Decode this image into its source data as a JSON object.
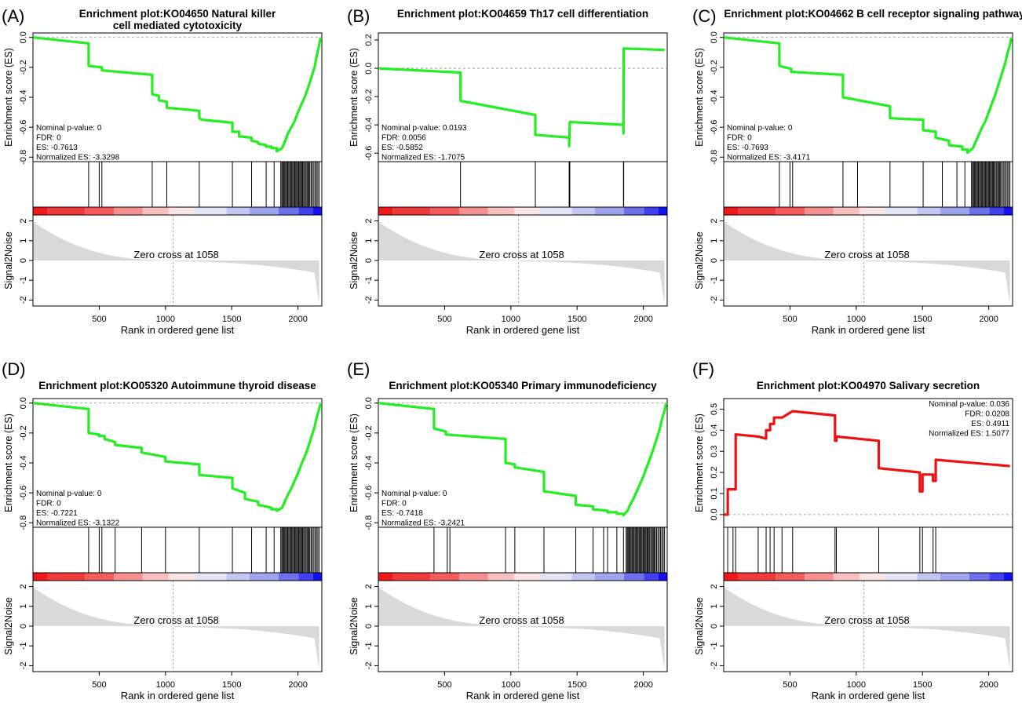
{
  "figure": {
    "shared": {
      "es_ylabel": "Enrichment score (ES)",
      "noise_ylabel": "Signal2Noise",
      "xlabel": "Rank in ordered gene list",
      "zero_cross_text": "Zero cross at 1058",
      "x_ticks": [
        "500",
        "1000",
        "1500",
        "2000"
      ],
      "noise_ticks": [
        "2",
        "1",
        "0",
        "-1",
        "-2"
      ],
      "colors": {
        "negative_curve": "#22ee22",
        "positive_curve": "#ee1111",
        "heatmap_red": "#ff0000",
        "heatmap_blue": "#0000ff",
        "noise_fill": "#d9d9d9"
      }
    }
  },
  "chart_data": [
    {
      "type": "line",
      "panel_label": "(A)",
      "title": "Enrichment plot:KO04650 Natural killer cell mediated cytotoxicity",
      "stats": [
        "Nominal p-value: 0",
        "FDR: 0",
        "ES: -0.7613",
        "Normalized ES: -3.3298"
      ],
      "y_ticks": [
        "0.0",
        "-0.2",
        "-0.4",
        "-0.6",
        "-0.8"
      ],
      "ylim": [
        -0.83,
        0.03
      ],
      "xlim": [
        0,
        2180
      ],
      "zero_cross": 1058,
      "es": {
        "x": [
          1,
          420,
          420,
          520,
          520,
          900,
          900,
          950,
          950,
          1010,
          1010,
          1255,
          1255,
          1275,
          1275,
          1505,
          1505,
          1555,
          1555,
          1650,
          1650,
          1700,
          1700,
          1760,
          1760,
          1800,
          1800,
          1840,
          1840,
          1880,
          1900,
          1925,
          1950,
          1975,
          2000,
          2025,
          2050,
          2075,
          2100,
          2125,
          2140,
          2160,
          2172
        ],
        "y": [
          0.0,
          -0.04,
          -0.19,
          -0.2,
          -0.22,
          -0.25,
          -0.38,
          -0.39,
          -0.42,
          -0.43,
          -0.47,
          -0.49,
          -0.54,
          -0.55,
          -0.55,
          -0.57,
          -0.63,
          -0.63,
          -0.66,
          -0.67,
          -0.69,
          -0.7,
          -0.71,
          -0.72,
          -0.73,
          -0.73,
          -0.74,
          -0.74,
          -0.76,
          -0.74,
          -0.7,
          -0.64,
          -0.6,
          -0.56,
          -0.5,
          -0.45,
          -0.4,
          -0.34,
          -0.27,
          -0.2,
          -0.13,
          -0.05,
          0.0
        ]
      },
      "hits": [
        420,
        500,
        520,
        900,
        1010,
        1255,
        1505,
        1650,
        1760,
        1820,
        1870,
        1878,
        1885,
        1892,
        1900,
        1907,
        1915,
        1922,
        1930,
        1938,
        1945,
        1953,
        1960,
        1968,
        1975,
        1983,
        1990,
        1998,
        2005,
        2013,
        2020,
        2028,
        2035,
        2043,
        2050,
        2060,
        2068,
        2075,
        2083,
        2090,
        2100,
        2110,
        2120,
        2130,
        2140,
        2150,
        2160
      ]
    },
    {
      "type": "line",
      "panel_label": "(B)",
      "title": "Enrichment plot:KO04659 Th17 cell differentiation",
      "stats": [
        "Nominal p-value: 0.0193",
        "FDR: 0.0056",
        "ES: -0.5852",
        "Normalized ES: -1.7075"
      ],
      "y_ticks": [
        "0.2",
        "0.0",
        "-0.2",
        "-0.4",
        "-0.6"
      ],
      "ylim": [
        -0.66,
        0.25
      ],
      "xlim": [
        0,
        2180
      ],
      "zero_cross": 1058,
      "es": {
        "x": [
          1,
          620,
          620,
          1185,
          1185,
          1440,
          1440,
          1445,
          1445,
          1850,
          1850,
          1852,
          1852,
          2160
        ],
        "y": [
          0.0,
          -0.03,
          -0.23,
          -0.33,
          -0.47,
          -0.49,
          -0.55,
          -0.38,
          -0.38,
          -0.4,
          -0.46,
          0.14,
          0.14,
          0.13
        ]
      },
      "hits": [
        620,
        1185,
        1440,
        1445,
        1850,
        1852
      ]
    },
    {
      "type": "line",
      "panel_label": "(C)",
      "title": "Enrichment plot:KO04662 B cell receptor signaling pathway",
      "stats": [
        "Nominal p-value: 0",
        "FDR: 0",
        "ES: -0.7693",
        "Normalized ES: -3.4171"
      ],
      "y_ticks": [
        "0.0",
        "-0.2",
        "-0.4",
        "-0.6",
        "-0.8"
      ],
      "ylim": [
        -0.83,
        0.03
      ],
      "xlim": [
        0,
        2180
      ],
      "zero_cross": 1058,
      "es": {
        "x": [
          1,
          420,
          420,
          510,
          510,
          900,
          900,
          1255,
          1255,
          1505,
          1505,
          1600,
          1600,
          1700,
          1700,
          1800,
          1800,
          1840,
          1840,
          1880,
          1900,
          1925,
          1950,
          1975,
          2000,
          2025,
          2050,
          2075,
          2100,
          2125,
          2140,
          2160,
          2172
        ],
        "y": [
          0.0,
          -0.04,
          -0.19,
          -0.21,
          -0.23,
          -0.25,
          -0.4,
          -0.46,
          -0.54,
          -0.55,
          -0.62,
          -0.63,
          -0.67,
          -0.69,
          -0.72,
          -0.73,
          -0.75,
          -0.75,
          -0.77,
          -0.74,
          -0.7,
          -0.65,
          -0.6,
          -0.56,
          -0.5,
          -0.44,
          -0.38,
          -0.31,
          -0.24,
          -0.17,
          -0.11,
          -0.05,
          0.0
        ]
      },
      "hits": [
        420,
        500,
        520,
        900,
        1010,
        1255,
        1505,
        1650,
        1760,
        1820,
        1870,
        1878,
        1885,
        1892,
        1900,
        1907,
        1915,
        1922,
        1930,
        1938,
        1945,
        1953,
        1960,
        1968,
        1975,
        1983,
        1990,
        1998,
        2005,
        2013,
        2020,
        2028,
        2035,
        2043,
        2050,
        2060,
        2068,
        2075,
        2083,
        2090,
        2100,
        2110,
        2120,
        2130,
        2140,
        2150,
        2160
      ]
    },
    {
      "type": "line",
      "panel_label": "(D)",
      "title": "Enrichment plot:KO05320 Autoimmune thyroid disease",
      "stats": [
        "Nominal p-value: 0",
        "FDR: 0",
        "ES: -0.7221",
        "Normalized ES: -3.1322"
      ],
      "y_ticks": [
        "0.0",
        "-0.2",
        "-0.4",
        "-0.6",
        "-0.8"
      ],
      "ylim": [
        -0.83,
        0.03
      ],
      "xlim": [
        0,
        2180
      ],
      "zero_cross": 1058,
      "es": {
        "x": [
          1,
          420,
          420,
          500,
          500,
          540,
          540,
          620,
          620,
          820,
          820,
          1000,
          1000,
          1255,
          1255,
          1505,
          1505,
          1600,
          1600,
          1700,
          1700,
          1800,
          1800,
          1840,
          1840,
          1880,
          1900,
          1925,
          1950,
          1975,
          2000,
          2025,
          2050,
          2075,
          2100,
          2125,
          2140,
          2160,
          2172
        ],
        "y": [
          0.0,
          -0.04,
          -0.2,
          -0.21,
          -0.22,
          -0.22,
          -0.24,
          -0.26,
          -0.28,
          -0.3,
          -0.33,
          -0.36,
          -0.39,
          -0.41,
          -0.48,
          -0.5,
          -0.57,
          -0.6,
          -0.64,
          -0.66,
          -0.68,
          -0.7,
          -0.71,
          -0.71,
          -0.72,
          -0.7,
          -0.66,
          -0.61,
          -0.57,
          -0.52,
          -0.47,
          -0.41,
          -0.36,
          -0.3,
          -0.23,
          -0.16,
          -0.1,
          -0.04,
          0.0
        ]
      },
      "hits": [
        420,
        500,
        520,
        620,
        820,
        1000,
        1255,
        1505,
        1650,
        1760,
        1820,
        1870,
        1878,
        1885,
        1892,
        1900,
        1907,
        1915,
        1922,
        1930,
        1938,
        1945,
        1953,
        1960,
        1968,
        1975,
        1983,
        1990,
        1998,
        2005,
        2013,
        2020,
        2028,
        2035,
        2043,
        2050,
        2060,
        2068,
        2075,
        2083,
        2090,
        2100,
        2110,
        2120,
        2130,
        2140,
        2150,
        2160
      ]
    },
    {
      "type": "line",
      "panel_label": "(E)",
      "title": "Enrichment plot:KO05340 Primary immunodeficiency",
      "stats": [
        "Nominal p-value: 0",
        "FDR: 0",
        "ES: -0.7418",
        "Normalized ES: -3.2421"
      ],
      "y_ticks": [
        "0.0",
        "-0.2",
        "-0.4",
        "-0.6",
        "-0.8"
      ],
      "ylim": [
        -0.83,
        0.03
      ],
      "xlim": [
        0,
        2180
      ],
      "zero_cross": 1058,
      "es": {
        "x": [
          1,
          420,
          420,
          510,
          510,
          960,
          960,
          1030,
          1030,
          1250,
          1250,
          1490,
          1490,
          1620,
          1620,
          1730,
          1730,
          1800,
          1800,
          1850,
          1850,
          1880,
          1900,
          1925,
          1950,
          1975,
          2000,
          2025,
          2050,
          2075,
          2100,
          2125,
          2140,
          2160,
          2172
        ],
        "y": [
          0.0,
          -0.04,
          -0.17,
          -0.19,
          -0.21,
          -0.24,
          -0.4,
          -0.41,
          -0.43,
          -0.46,
          -0.59,
          -0.62,
          -0.68,
          -0.69,
          -0.71,
          -0.72,
          -0.73,
          -0.73,
          -0.74,
          -0.74,
          -0.75,
          -0.72,
          -0.68,
          -0.64,
          -0.59,
          -0.54,
          -0.49,
          -0.43,
          -0.37,
          -0.31,
          -0.24,
          -0.17,
          -0.11,
          -0.05,
          0.0
        ]
      },
      "hits": [
        420,
        520,
        540,
        960,
        1030,
        1250,
        1490,
        1620,
        1700,
        1730,
        1800,
        1850,
        1870,
        1878,
        1885,
        1892,
        1900,
        1907,
        1915,
        1922,
        1930,
        1938,
        1945,
        1953,
        1960,
        1968,
        1975,
        1983,
        1990,
        1998,
        2005,
        2013,
        2020,
        2028,
        2035,
        2043,
        2050,
        2060,
        2068,
        2075,
        2083,
        2090,
        2100,
        2110,
        2120,
        2130,
        2140,
        2150,
        2160
      ]
    },
    {
      "type": "line",
      "panel_label": "(F)",
      "title": "Enrichment plot:KO04970 Salivary secretion",
      "stats": [
        "Nominal p-value: 0.036",
        "FDR: 0.0208",
        "ES: 0.4911",
        "Normalized ES: 1.5077"
      ],
      "y_ticks": [
        "0.0",
        "0.1",
        "0.2",
        "0.3",
        "0.4",
        "0.5"
      ],
      "ylim": [
        -0.06,
        0.55
      ],
      "xlim": [
        0,
        2180
      ],
      "zero_cross": 1058,
      "es": {
        "x": [
          1,
          25,
          30,
          30,
          70,
          70,
          90,
          90,
          260,
          260,
          320,
          320,
          350,
          350,
          380,
          380,
          440,
          440,
          520,
          520,
          840,
          840,
          850,
          850,
          1170,
          1170,
          1480,
          1480,
          1500,
          1500,
          1580,
          1580,
          1600,
          1600,
          2160
        ],
        "y": [
          0.0,
          0.0,
          0.0,
          0.12,
          0.12,
          0.12,
          0.12,
          0.38,
          0.37,
          0.37,
          0.36,
          0.4,
          0.4,
          0.43,
          0.43,
          0.46,
          0.46,
          0.46,
          0.49,
          0.49,
          0.47,
          0.35,
          0.35,
          0.37,
          0.35,
          0.22,
          0.2,
          0.11,
          0.11,
          0.19,
          0.19,
          0.16,
          0.16,
          0.26,
          0.23
        ]
      },
      "hits": [
        30,
        70,
        90,
        260,
        320,
        350,
        380,
        440,
        520,
        840,
        850,
        1170,
        1480,
        1500,
        1580,
        1600
      ]
    }
  ]
}
